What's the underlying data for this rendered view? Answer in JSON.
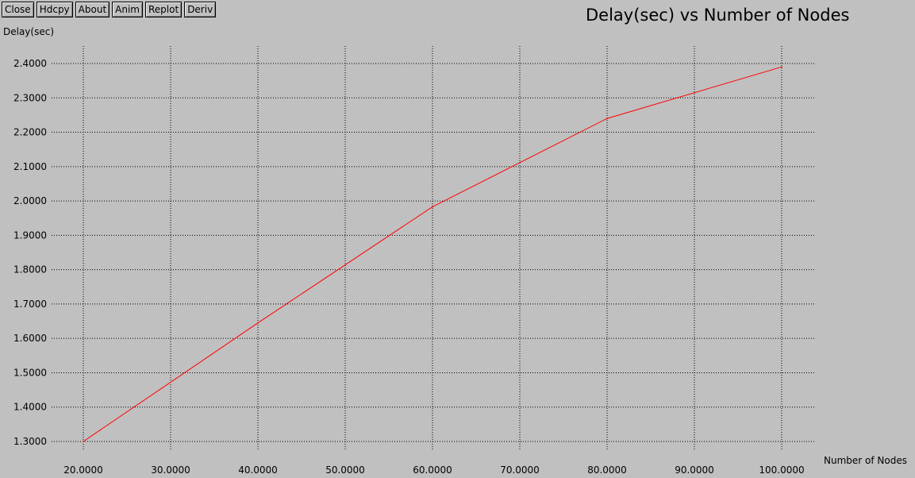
{
  "toolbar": {
    "buttons": [
      "Close",
      "Hdcpy",
      "About",
      "Anim",
      "Replot",
      "Deriv"
    ]
  },
  "colors": {
    "background": "#c0c0c0",
    "grid": "#000000",
    "series": "#ff0000"
  },
  "chart_data": {
    "type": "line",
    "title": "Delay(sec) vs Number of Nodes",
    "xlabel": "Number of Nodes",
    "ylabel": "Delay(sec)",
    "xlim": [
      20,
      100
    ],
    "ylim": [
      1.3,
      2.4
    ],
    "xticks": [
      "20.0000",
      "30.0000",
      "40.0000",
      "50.0000",
      "60.0000",
      "70.0000",
      "80.0000",
      "90.0000",
      "100.0000"
    ],
    "yticks": [
      "2.4000",
      "2.3000",
      "2.2000",
      "2.1000",
      "2.0000",
      "1.9000",
      "1.8000",
      "1.7000",
      "1.6000",
      "1.5000",
      "1.4000",
      "1.3000"
    ],
    "grid": true,
    "series": [
      {
        "x": [
          20,
          40,
          60,
          80,
          100
        ],
        "y": [
          1.3,
          1.645,
          1.983,
          2.24,
          2.39
        ]
      }
    ]
  }
}
